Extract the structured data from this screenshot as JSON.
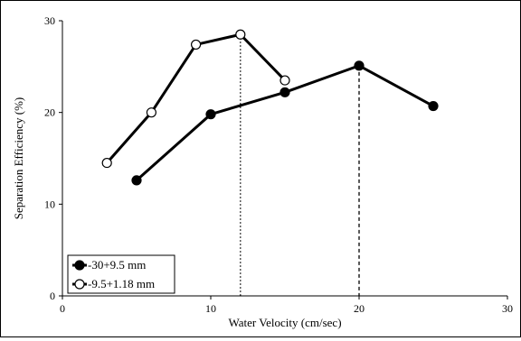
{
  "chart_data": {
    "type": "line",
    "title": "",
    "xlabel": "Water Velocity (cm/sec)",
    "ylabel": "Separation Efficiency (%)",
    "xlim": [
      0,
      30
    ],
    "ylim": [
      0,
      30
    ],
    "xticks": [
      0,
      10,
      20,
      30
    ],
    "yticks": [
      0,
      10,
      20,
      30
    ],
    "grid": false,
    "legend_position": "bottom-left",
    "series": [
      {
        "name": "-30+9.5 mm",
        "marker": "filled-circle",
        "color": "#000000",
        "x": [
          5,
          10,
          15,
          20,
          25
        ],
        "y": [
          12.6,
          19.8,
          22.2,
          25.1,
          20.7
        ]
      },
      {
        "name": "-9.5+1.18 mm",
        "marker": "open-circle",
        "color": "#000000",
        "x": [
          3,
          6,
          9,
          12,
          15
        ],
        "y": [
          14.5,
          20.0,
          27.4,
          28.5,
          23.5
        ]
      }
    ],
    "reference_lines": [
      {
        "x": 12,
        "style": "dotted",
        "to_series": 1
      },
      {
        "x": 20,
        "style": "dashed",
        "to_series": 0
      }
    ]
  }
}
